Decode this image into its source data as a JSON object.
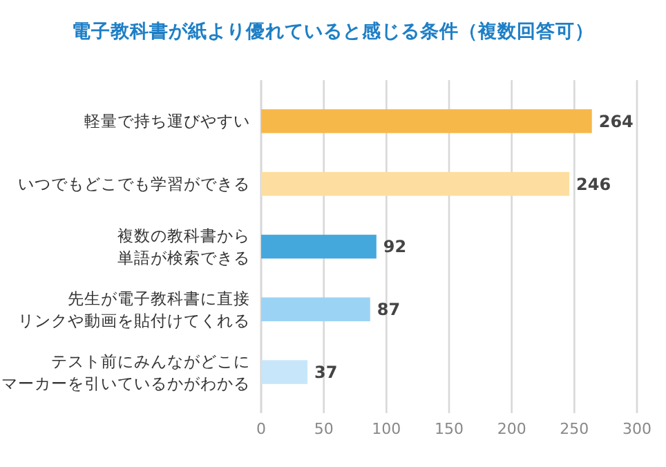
{
  "chart_data": {
    "type": "bar",
    "orientation": "horizontal",
    "title": "電子教科書が紙より優れていると感じる条件（複数回答可）",
    "categories": [
      "軽量で持ち運びやすい",
      "いつでもどこでも学習ができる",
      "複数の教科書から単語が検索できる",
      "先生が電子教科書に直接リンクや動画を貼付けてくれる",
      "テスト前にみんながどこにマーカーを引いているかがわかる"
    ],
    "values": [
      264,
      246,
      92,
      87,
      37
    ],
    "colors": [
      "#f7b84a",
      "#fddea0",
      "#45a8dd",
      "#9bd3f5",
      "#c8e6fa"
    ],
    "xlim": [
      0,
      300
    ],
    "xticks": [
      0,
      50,
      100,
      150,
      200,
      250,
      300
    ],
    "grid": "x",
    "data_labels": true
  }
}
